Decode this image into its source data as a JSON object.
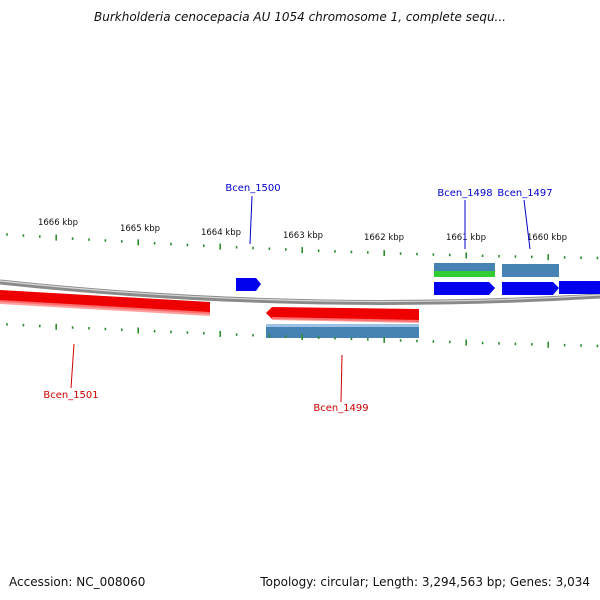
{
  "title": "Burkholderia cenocepacia AU 1054 chromosome 1, complete sequ...",
  "accession": "Accession: NC_008060",
  "summary": "Topology: circular; Length: 3,294,563 bp; Genes: 3,034",
  "colors": {
    "backbone": "#8a8a8a",
    "tick": "#2e8b2e",
    "forward_cds": "#0000ee",
    "forward_gene": "#4682b4",
    "rna_feature": "#32cd32",
    "reverse_cds": "#ee0000",
    "forward_label": "#0000cc",
    "reverse_label": "#cc0000"
  },
  "scale": {
    "labels": [
      "1666 kbp",
      "1665 kbp",
      "1664 kbp",
      "1663 kbp",
      "1662 kbp",
      "1661 kbp",
      "1660 kbp"
    ]
  },
  "genes": [
    {
      "name": "Bcen_1500",
      "strand": "forward"
    },
    {
      "name": "Bcen_1498",
      "strand": "forward"
    },
    {
      "name": "Bcen_1497",
      "strand": "forward"
    },
    {
      "name": "Bcen_1501",
      "strand": "reverse"
    },
    {
      "name": "Bcen_1499",
      "strand": "reverse"
    }
  ]
}
